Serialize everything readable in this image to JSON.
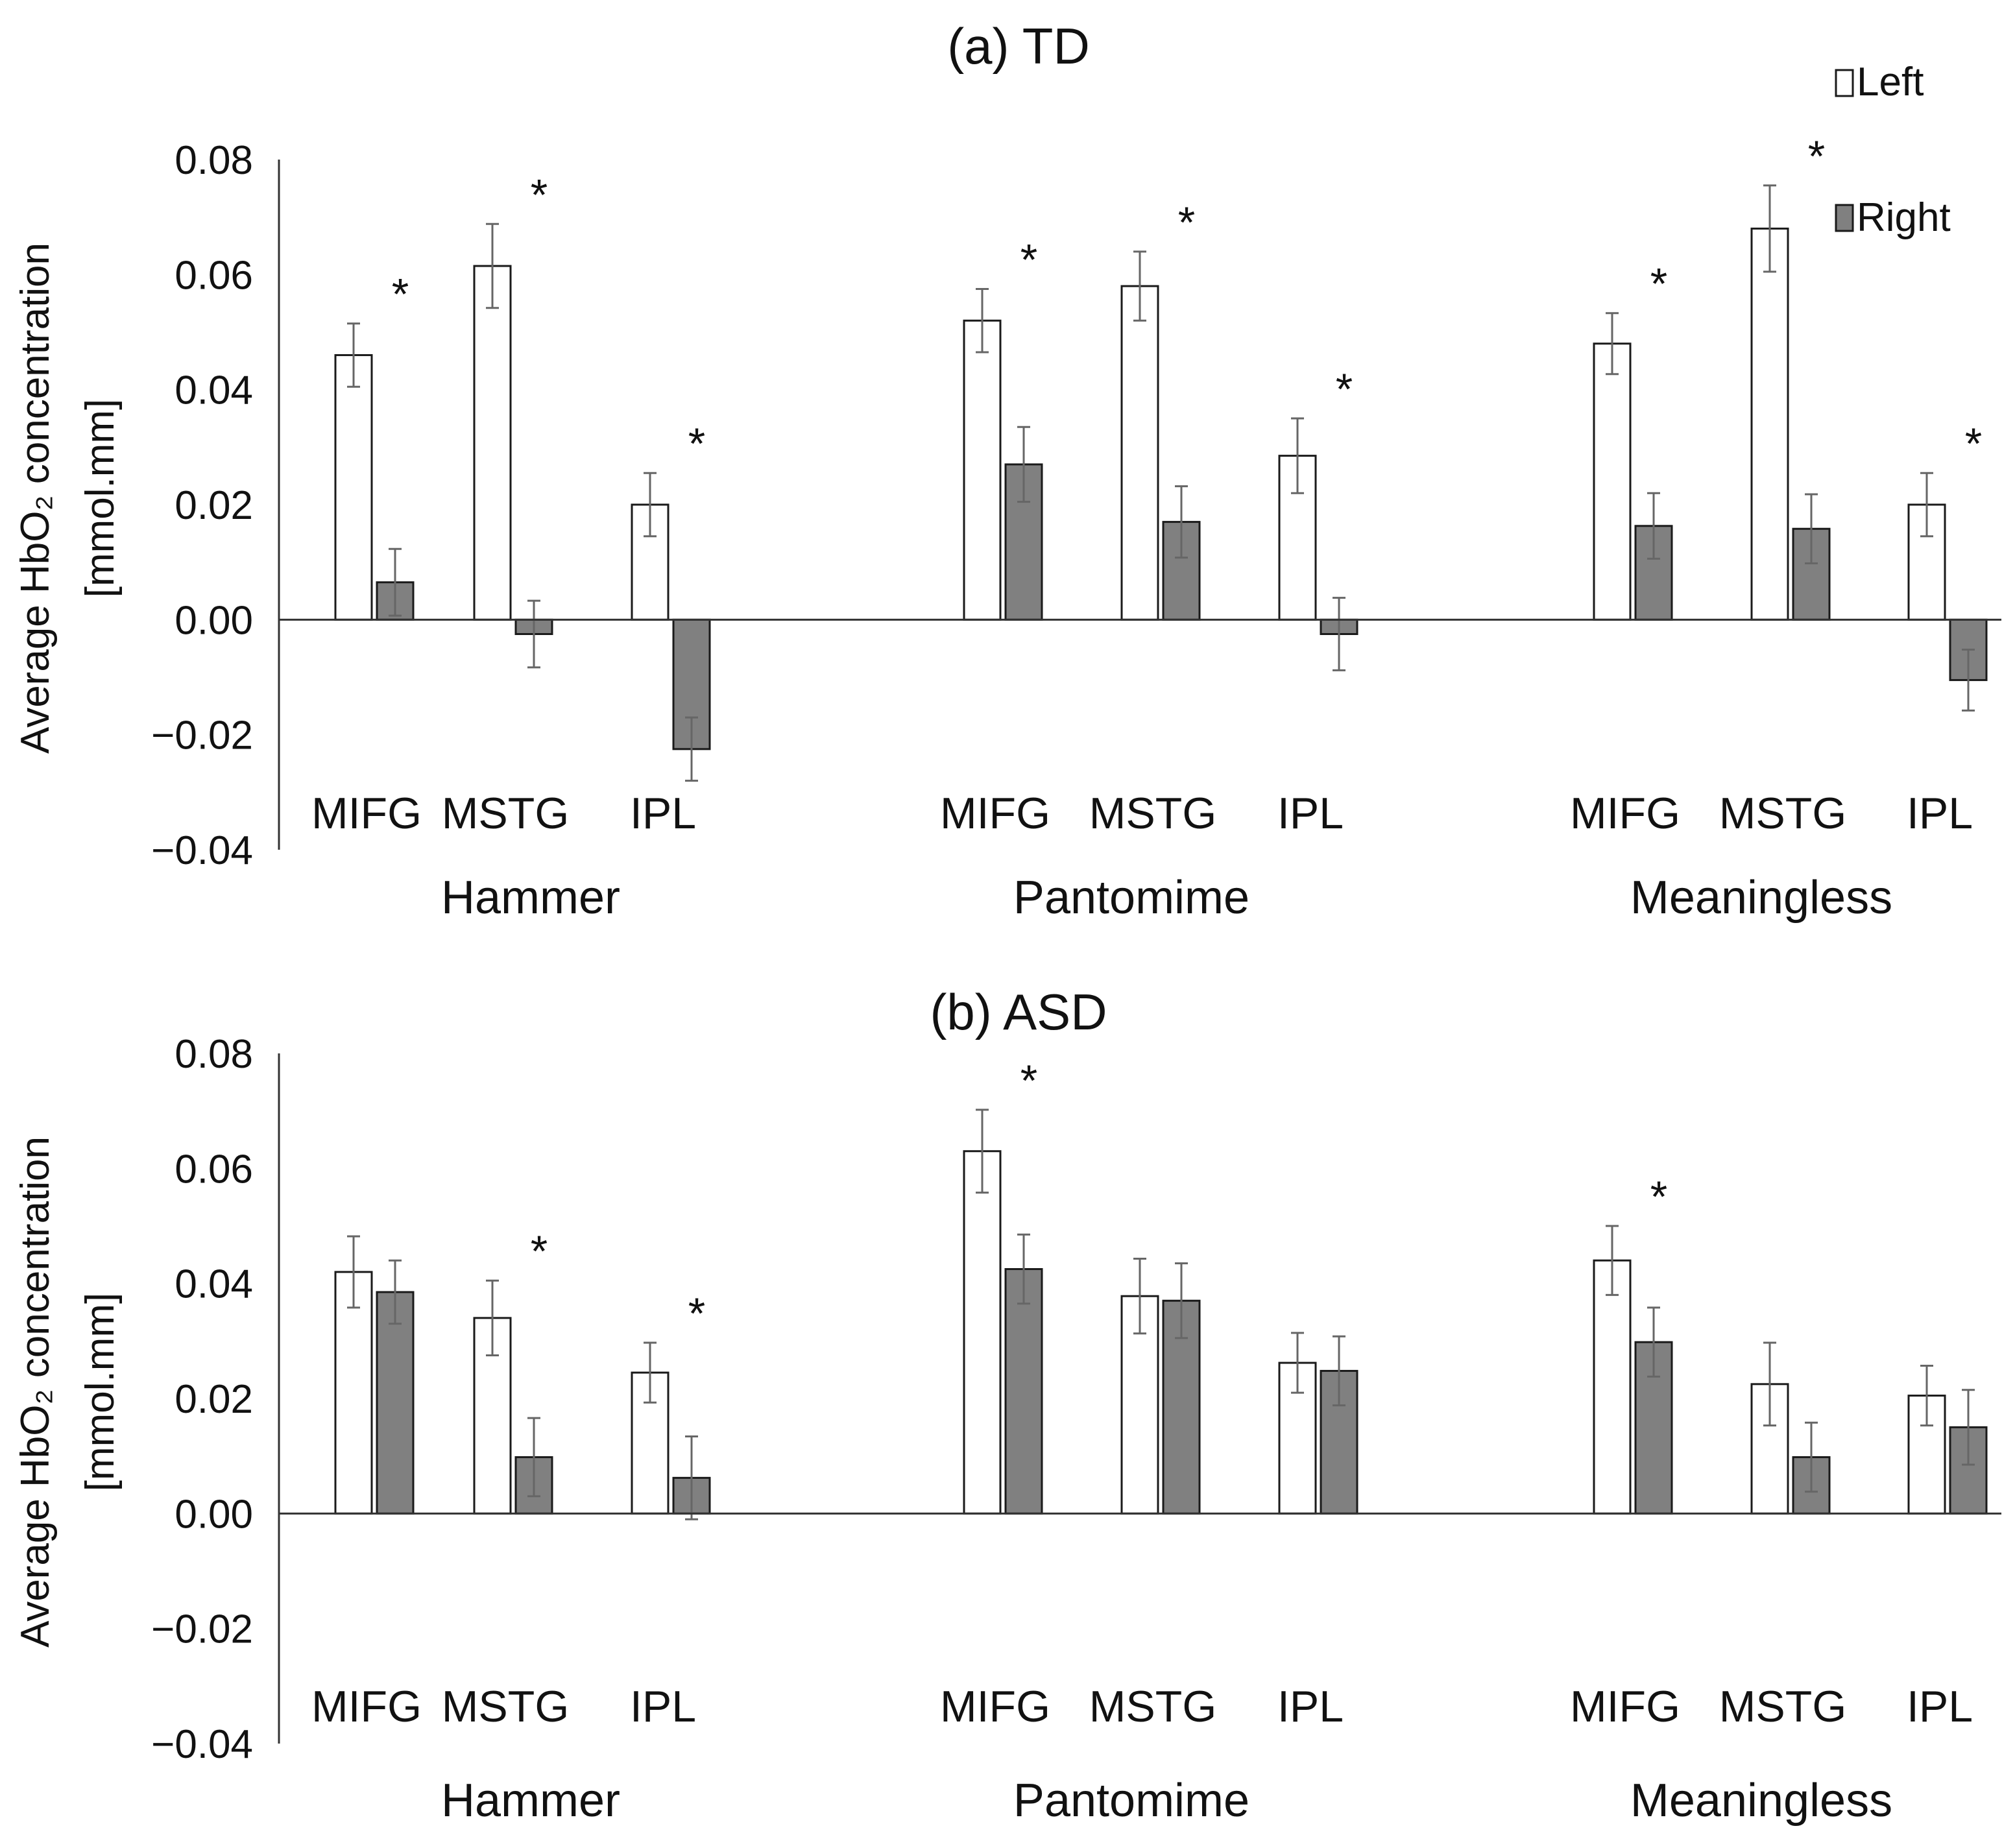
{
  "chart_data": [
    {
      "id": "td",
      "type": "bar",
      "title": "(a) TD",
      "ylabel_line1": "Average  HbO₂ concentration",
      "ylabel_line2": "[mmol.mm]",
      "ylim": [
        -0.04,
        0.08
      ],
      "yticks": [
        "0.08",
        "0.06",
        "0.04",
        "0.02",
        "0.00",
        "−0.02",
        "−0.04"
      ],
      "ytick_values": [
        0.08,
        0.06,
        0.04,
        0.02,
        0.0,
        -0.02,
        -0.04
      ],
      "groups": [
        {
          "label": "Hammer",
          "regions": [
            {
              "label": "MIFG",
              "left": 0.046,
              "left_err": 0.0055,
              "right": 0.0065,
              "right_err": 0.0058,
              "sig": "*"
            },
            {
              "label": "MSTG",
              "left": 0.0615,
              "left_err": 0.0073,
              "right": -0.0025,
              "right_err": 0.0058,
              "sig": "*"
            },
            {
              "label": "IPL",
              "left": 0.02,
              "left_err": 0.0055,
              "right": -0.0225,
              "right_err": 0.0055,
              "sig": "*"
            }
          ]
        },
        {
          "label": "Pantomime",
          "regions": [
            {
              "label": "MIFG",
              "left": 0.052,
              "left_err": 0.0055,
              "right": 0.027,
              "right_err": 0.0065,
              "sig": "*"
            },
            {
              "label": "MSTG",
              "left": 0.058,
              "left_err": 0.006,
              "right": 0.017,
              "right_err": 0.0062,
              "sig": "*"
            },
            {
              "label": "IPL",
              "left": 0.0285,
              "left_err": 0.0065,
              "right": -0.0025,
              "right_err": 0.0063,
              "sig": "*"
            }
          ]
        },
        {
          "label": "Meaningless",
          "regions": [
            {
              "label": "MIFG",
              "left": 0.048,
              "left_err": 0.0053,
              "right": 0.0163,
              "right_err": 0.0057,
              "sig": "*"
            },
            {
              "label": "MSTG",
              "left": 0.068,
              "left_err": 0.0075,
              "right": 0.0158,
              "right_err": 0.006,
              "sig": "*"
            },
            {
              "label": "IPL",
              "left": 0.02,
              "left_err": 0.0055,
              "right": -0.0105,
              "right_err": 0.0053,
              "sig": "*"
            }
          ]
        }
      ]
    },
    {
      "id": "asd",
      "type": "bar",
      "title": "(b) ASD",
      "ylabel_line1": "Average  HbO₂ concentration",
      "ylabel_line2": "[mmol.mm]",
      "ylim": [
        -0.04,
        0.08
      ],
      "yticks": [
        "0.08",
        "0.06",
        "0.04",
        "0.02",
        "0.00",
        "−0.02",
        "−0.04"
      ],
      "ytick_values": [
        0.08,
        0.06,
        0.04,
        0.02,
        0.0,
        -0.02,
        -0.04
      ],
      "groups": [
        {
          "label": "Hammer",
          "regions": [
            {
              "label": "MIFG",
              "left": 0.042,
              "left_err": 0.0062,
              "right": 0.0385,
              "right_err": 0.0055,
              "sig": ""
            },
            {
              "label": "MSTG",
              "left": 0.034,
              "left_err": 0.0065,
              "right": 0.0098,
              "right_err": 0.0068,
              "sig": "*"
            },
            {
              "label": "IPL",
              "left": 0.0245,
              "left_err": 0.0052,
              "right": 0.0062,
              "right_err": 0.0072,
              "sig": "*"
            }
          ]
        },
        {
          "label": "Pantomime",
          "regions": [
            {
              "label": "MIFG",
              "left": 0.063,
              "left_err": 0.0072,
              "right": 0.0425,
              "right_err": 0.006,
              "sig": "*"
            },
            {
              "label": "MSTG",
              "left": 0.0378,
              "left_err": 0.0065,
              "right": 0.037,
              "right_err": 0.0065,
              "sig": ""
            },
            {
              "label": "IPL",
              "left": 0.0262,
              "left_err": 0.0052,
              "right": 0.0248,
              "right_err": 0.006,
              "sig": ""
            }
          ]
        },
        {
          "label": "Meaningless",
          "regions": [
            {
              "label": "MIFG",
              "left": 0.044,
              "left_err": 0.006,
              "right": 0.0298,
              "right_err": 0.006,
              "sig": "*"
            },
            {
              "label": "MSTG",
              "left": 0.0225,
              "left_err": 0.0072,
              "right": 0.0098,
              "right_err": 0.006,
              "sig": ""
            },
            {
              "label": "IPL",
              "left": 0.0205,
              "left_err": 0.0052,
              "right": 0.015,
              "right_err": 0.0065,
              "sig": ""
            }
          ]
        }
      ]
    }
  ],
  "legend": {
    "left_label": "Left",
    "right_label": "Right",
    "left_color": "#ffffff",
    "right_color": "#808080",
    "stroke_color": "#1a1a1a",
    "error_color": "#666666"
  }
}
